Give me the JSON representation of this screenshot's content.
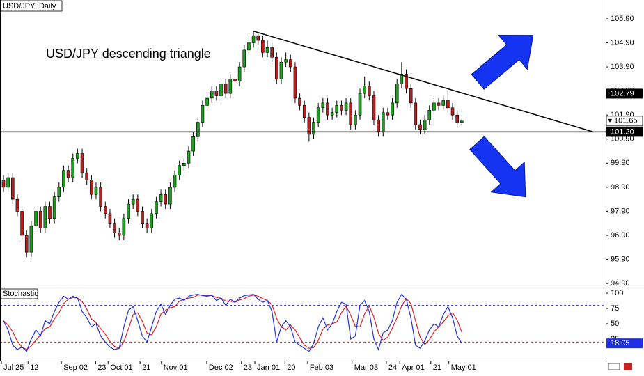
{
  "chart_data": [
    {
      "type": "candlestick",
      "title": "USD/JPY: Daily",
      "annotation": "USD/JPY descending triangle",
      "up_color": "#1e9e1e",
      "down_color": "#b22222",
      "wick_color": "#000000",
      "open": [
        99.2,
        98.9,
        99.3,
        98.4,
        97.9,
        96.9,
        96.2,
        97.3,
        97.9,
        97.2,
        98.1,
        97.6,
        98.5,
        98.9,
        99.6,
        99.3,
        100.1,
        100.3,
        99.5,
        99.2,
        98.6,
        98.9,
        98.1,
        97.8,
        97.4,
        97.0,
        96.9,
        97.6,
        98.2,
        98.4,
        97.9,
        97.4,
        97.2,
        97.8,
        98.3,
        98.6,
        98.2,
        98.9,
        99.4,
        99.8,
        99.9,
        100.4,
        101.0,
        101.6,
        102.3,
        102.6,
        102.9,
        102.7,
        103.2,
        102.8,
        103.4,
        103.3,
        103.9,
        104.6,
        104.9,
        105.2,
        105.0,
        104.5,
        104.7,
        104.3,
        103.4,
        104.1,
        104.2,
        103.9,
        102.6,
        102.3,
        101.8,
        101.1,
        101.6,
        102.2,
        102.4,
        101.9,
        102.0,
        102.3,
        102.1,
        102.4,
        101.5,
        101.9,
        102.8,
        103.1,
        102.7,
        101.7,
        101.2,
        102.0,
        101.9,
        102.4,
        103.2,
        103.6,
        103.0,
        102.4,
        101.5,
        101.3,
        101.7,
        102.1,
        102.4,
        102.3,
        102.5,
        102.2,
        101.9,
        101.6
      ],
      "high": [
        99.4,
        99.5,
        99.5,
        98.6,
        98.1,
        97.1,
        97.5,
        98.1,
        98.1,
        98.3,
        98.3,
        98.7,
        99.1,
        99.8,
        99.8,
        100.3,
        100.5,
        100.5,
        99.7,
        99.4,
        99.1,
        99.1,
        98.3,
        98.0,
        97.6,
        97.2,
        97.8,
        98.4,
        98.6,
        98.6,
        98.1,
        97.6,
        98.0,
        98.5,
        98.8,
        98.8,
        99.1,
        99.6,
        100.0,
        100.1,
        100.6,
        101.2,
        101.8,
        102.5,
        102.8,
        103.1,
        103.1,
        103.4,
        103.4,
        103.6,
        103.6,
        104.1,
        104.8,
        105.1,
        105.4,
        105.3,
        105.2,
        105.0,
        104.9,
        104.5,
        104.3,
        104.5,
        104.4,
        104.1,
        102.8,
        102.5,
        102.0,
        101.8,
        102.4,
        102.6,
        102.6,
        102.2,
        102.5,
        102.5,
        102.6,
        102.6,
        102.1,
        103.0,
        103.5,
        103.3,
        102.9,
        101.9,
        102.2,
        102.2,
        102.6,
        103.4,
        104.1,
        103.8,
        103.2,
        102.6,
        101.7,
        101.9,
        102.3,
        102.6,
        102.6,
        102.7,
        102.9,
        102.4,
        102.1,
        101.8
      ],
      "low": [
        98.7,
        98.7,
        98.2,
        97.7,
        96.7,
        96.0,
        96.0,
        97.1,
        97.0,
        97.0,
        97.4,
        97.4,
        98.3,
        98.7,
        99.1,
        99.1,
        99.9,
        99.3,
        99.0,
        98.4,
        98.4,
        97.9,
        97.6,
        97.2,
        96.8,
        96.7,
        96.7,
        97.4,
        98.0,
        97.7,
        97.2,
        97.0,
        97.0,
        97.6,
        98.1,
        98.0,
        98.0,
        98.7,
        99.2,
        99.6,
        99.7,
        100.2,
        100.8,
        101.4,
        102.1,
        102.4,
        102.5,
        102.5,
        102.6,
        102.6,
        103.1,
        103.1,
        103.7,
        104.4,
        104.7,
        104.8,
        104.3,
        104.3,
        104.1,
        103.2,
        103.2,
        103.9,
        103.7,
        102.4,
        102.1,
        101.6,
        100.8,
        100.9,
        101.4,
        102.0,
        101.7,
        101.7,
        101.8,
        101.9,
        101.9,
        101.3,
        101.3,
        101.7,
        102.6,
        102.5,
        101.5,
        101.0,
        101.0,
        101.7,
        101.7,
        102.2,
        103.0,
        102.8,
        102.2,
        101.3,
        101.1,
        101.1,
        101.5,
        101.9,
        102.1,
        102.1,
        102.0,
        101.7,
        101.4,
        101.5
      ],
      "close": [
        98.9,
        99.3,
        98.4,
        97.9,
        96.9,
        96.2,
        97.3,
        97.9,
        97.2,
        98.1,
        97.6,
        98.5,
        98.9,
        99.6,
        99.3,
        100.1,
        100.3,
        99.5,
        99.2,
        98.6,
        98.9,
        98.1,
        97.8,
        97.4,
        97.0,
        96.9,
        97.6,
        98.2,
        98.4,
        97.9,
        97.4,
        97.2,
        97.8,
        98.3,
        98.6,
        98.2,
        98.9,
        99.4,
        99.8,
        99.9,
        100.4,
        101.0,
        101.6,
        102.3,
        102.6,
        102.9,
        102.7,
        103.2,
        102.8,
        103.4,
        103.3,
        103.9,
        104.6,
        104.9,
        105.2,
        105.0,
        104.5,
        104.7,
        104.3,
        103.4,
        104.1,
        104.2,
        103.9,
        102.6,
        102.3,
        101.8,
        101.1,
        101.6,
        102.2,
        102.4,
        101.9,
        102.0,
        102.3,
        102.1,
        102.4,
        101.5,
        101.9,
        102.8,
        103.1,
        102.7,
        101.7,
        101.2,
        102.0,
        101.9,
        102.4,
        103.2,
        103.6,
        103.0,
        102.4,
        101.5,
        101.3,
        101.7,
        102.1,
        102.4,
        102.3,
        102.5,
        102.2,
        101.9,
        101.6,
        101.65
      ],
      "xlim": [
        -0.75,
        130.08
      ],
      "ylim": [
        94.73,
        106.68
      ],
      "yticks": [
        {
          "value": 105.9,
          "label": "105.90"
        },
        {
          "value": 104.9,
          "label": "104.90"
        },
        {
          "value": 103.9,
          "label": "103.90"
        },
        {
          "value": 102.9,
          "label": "102.90"
        },
        {
          "value": 101.9,
          "label": "101.90"
        },
        {
          "value": 100.9,
          "label": "100.90"
        },
        {
          "value": 99.9,
          "label": "99.90"
        },
        {
          "value": 98.9,
          "label": "98.90"
        },
        {
          "value": 97.9,
          "label": "97.90"
        },
        {
          "value": 96.9,
          "label": "96.90"
        },
        {
          "value": 95.9,
          "label": "95.90"
        },
        {
          "value": 94.9,
          "label": "94.90"
        }
      ],
      "xticks": [
        {
          "value": -0.45,
          "label": "Jul 25"
        },
        {
          "value": 5.3,
          "label": "12"
        },
        {
          "value": 12.5,
          "label": "Sep 02"
        },
        {
          "value": 19.9,
          "label": "23"
        },
        {
          "value": 22.6,
          "label": "Oct 01"
        },
        {
          "value": 29.5,
          "label": "21"
        },
        {
          "value": 34.1,
          "label": "Nov 01"
        },
        {
          "value": 43.9,
          "label": "Dec 02"
        },
        {
          "value": 51.4,
          "label": "23"
        },
        {
          "value": 54.3,
          "label": "Jan 01"
        },
        {
          "value": 60.8,
          "label": "20"
        },
        {
          "value": 65.7,
          "label": "Feb 03"
        },
        {
          "value": 75.3,
          "label": "Mar 03"
        },
        {
          "value": 82.7,
          "label": "24"
        },
        {
          "value": 85.6,
          "label": "Apr 01"
        },
        {
          "value": 92.3,
          "label": "21"
        },
        {
          "value": 96.2,
          "label": "May 01"
        }
      ],
      "trendline": {
        "x": [
          54.1,
          127.4
        ],
        "y": [
          105.38,
          101.2
        ],
        "color": "#000000"
      },
      "hline": {
        "value": 101.2,
        "label": "101.20",
        "color": "#000000"
      },
      "price_label": 102.79
    },
    {
      "type": "line",
      "title": "Stochastic",
      "series": [
        {
          "color": "#2030e0",
          "values": [
            55,
            40,
            15,
            8,
            12,
            5,
            25,
            40,
            30,
            55,
            50,
            70,
            85,
            95,
            90,
            95,
            92,
            70,
            60,
            45,
            50,
            30,
            20,
            12,
            8,
            10,
            45,
            72,
            78,
            55,
            30,
            20,
            45,
            70,
            82,
            65,
            80,
            90,
            92,
            88,
            95,
            97,
            98,
            96,
            95,
            97,
            88,
            92,
            80,
            90,
            85,
            92,
            96,
            97,
            98,
            90,
            85,
            88,
            70,
            20,
            45,
            55,
            45,
            20,
            15,
            10,
            5,
            18,
            45,
            60,
            40,
            50,
            70,
            85,
            82,
            25,
            30,
            80,
            88,
            70,
            25,
            8,
            35,
            40,
            55,
            85,
            98,
            90,
            60,
            15,
            10,
            22,
            40,
            50,
            45,
            65,
            78,
            60,
            30,
            18.05
          ]
        },
        {
          "color": "#e02020",
          "values": [
            55,
            48,
            37,
            21,
            12,
            8,
            14,
            23,
            32,
            42,
            45,
            58,
            68,
            83,
            90,
            93,
            92,
            86,
            74,
            58,
            52,
            42,
            33,
            21,
            13,
            10,
            21,
            42,
            65,
            68,
            54,
            35,
            32,
            45,
            66,
            72,
            76,
            78,
            87,
            90,
            92,
            93,
            97,
            97,
            96,
            96,
            93,
            92,
            87,
            87,
            85,
            89,
            91,
            95,
            97,
            95,
            91,
            88,
            81,
            59,
            45,
            40,
            48,
            40,
            27,
            15,
            10,
            11,
            23,
            41,
            48,
            50,
            53,
            68,
            79,
            64,
            46,
            45,
            66,
            79,
            61,
            34,
            23,
            28,
            43,
            60,
            79,
            91,
            83,
            55,
            28,
            16,
            24,
            37,
            45,
            53,
            63,
            68,
            56,
            36
          ]
        }
      ],
      "ylim": [
        -10.2,
        107.95
      ],
      "yticks": [
        100,
        75,
        50,
        25
      ],
      "levels": [
        {
          "value": 80,
          "color": "#3030d0"
        },
        {
          "value": 20,
          "color": "#e02020"
        }
      ]
    }
  ]
}
